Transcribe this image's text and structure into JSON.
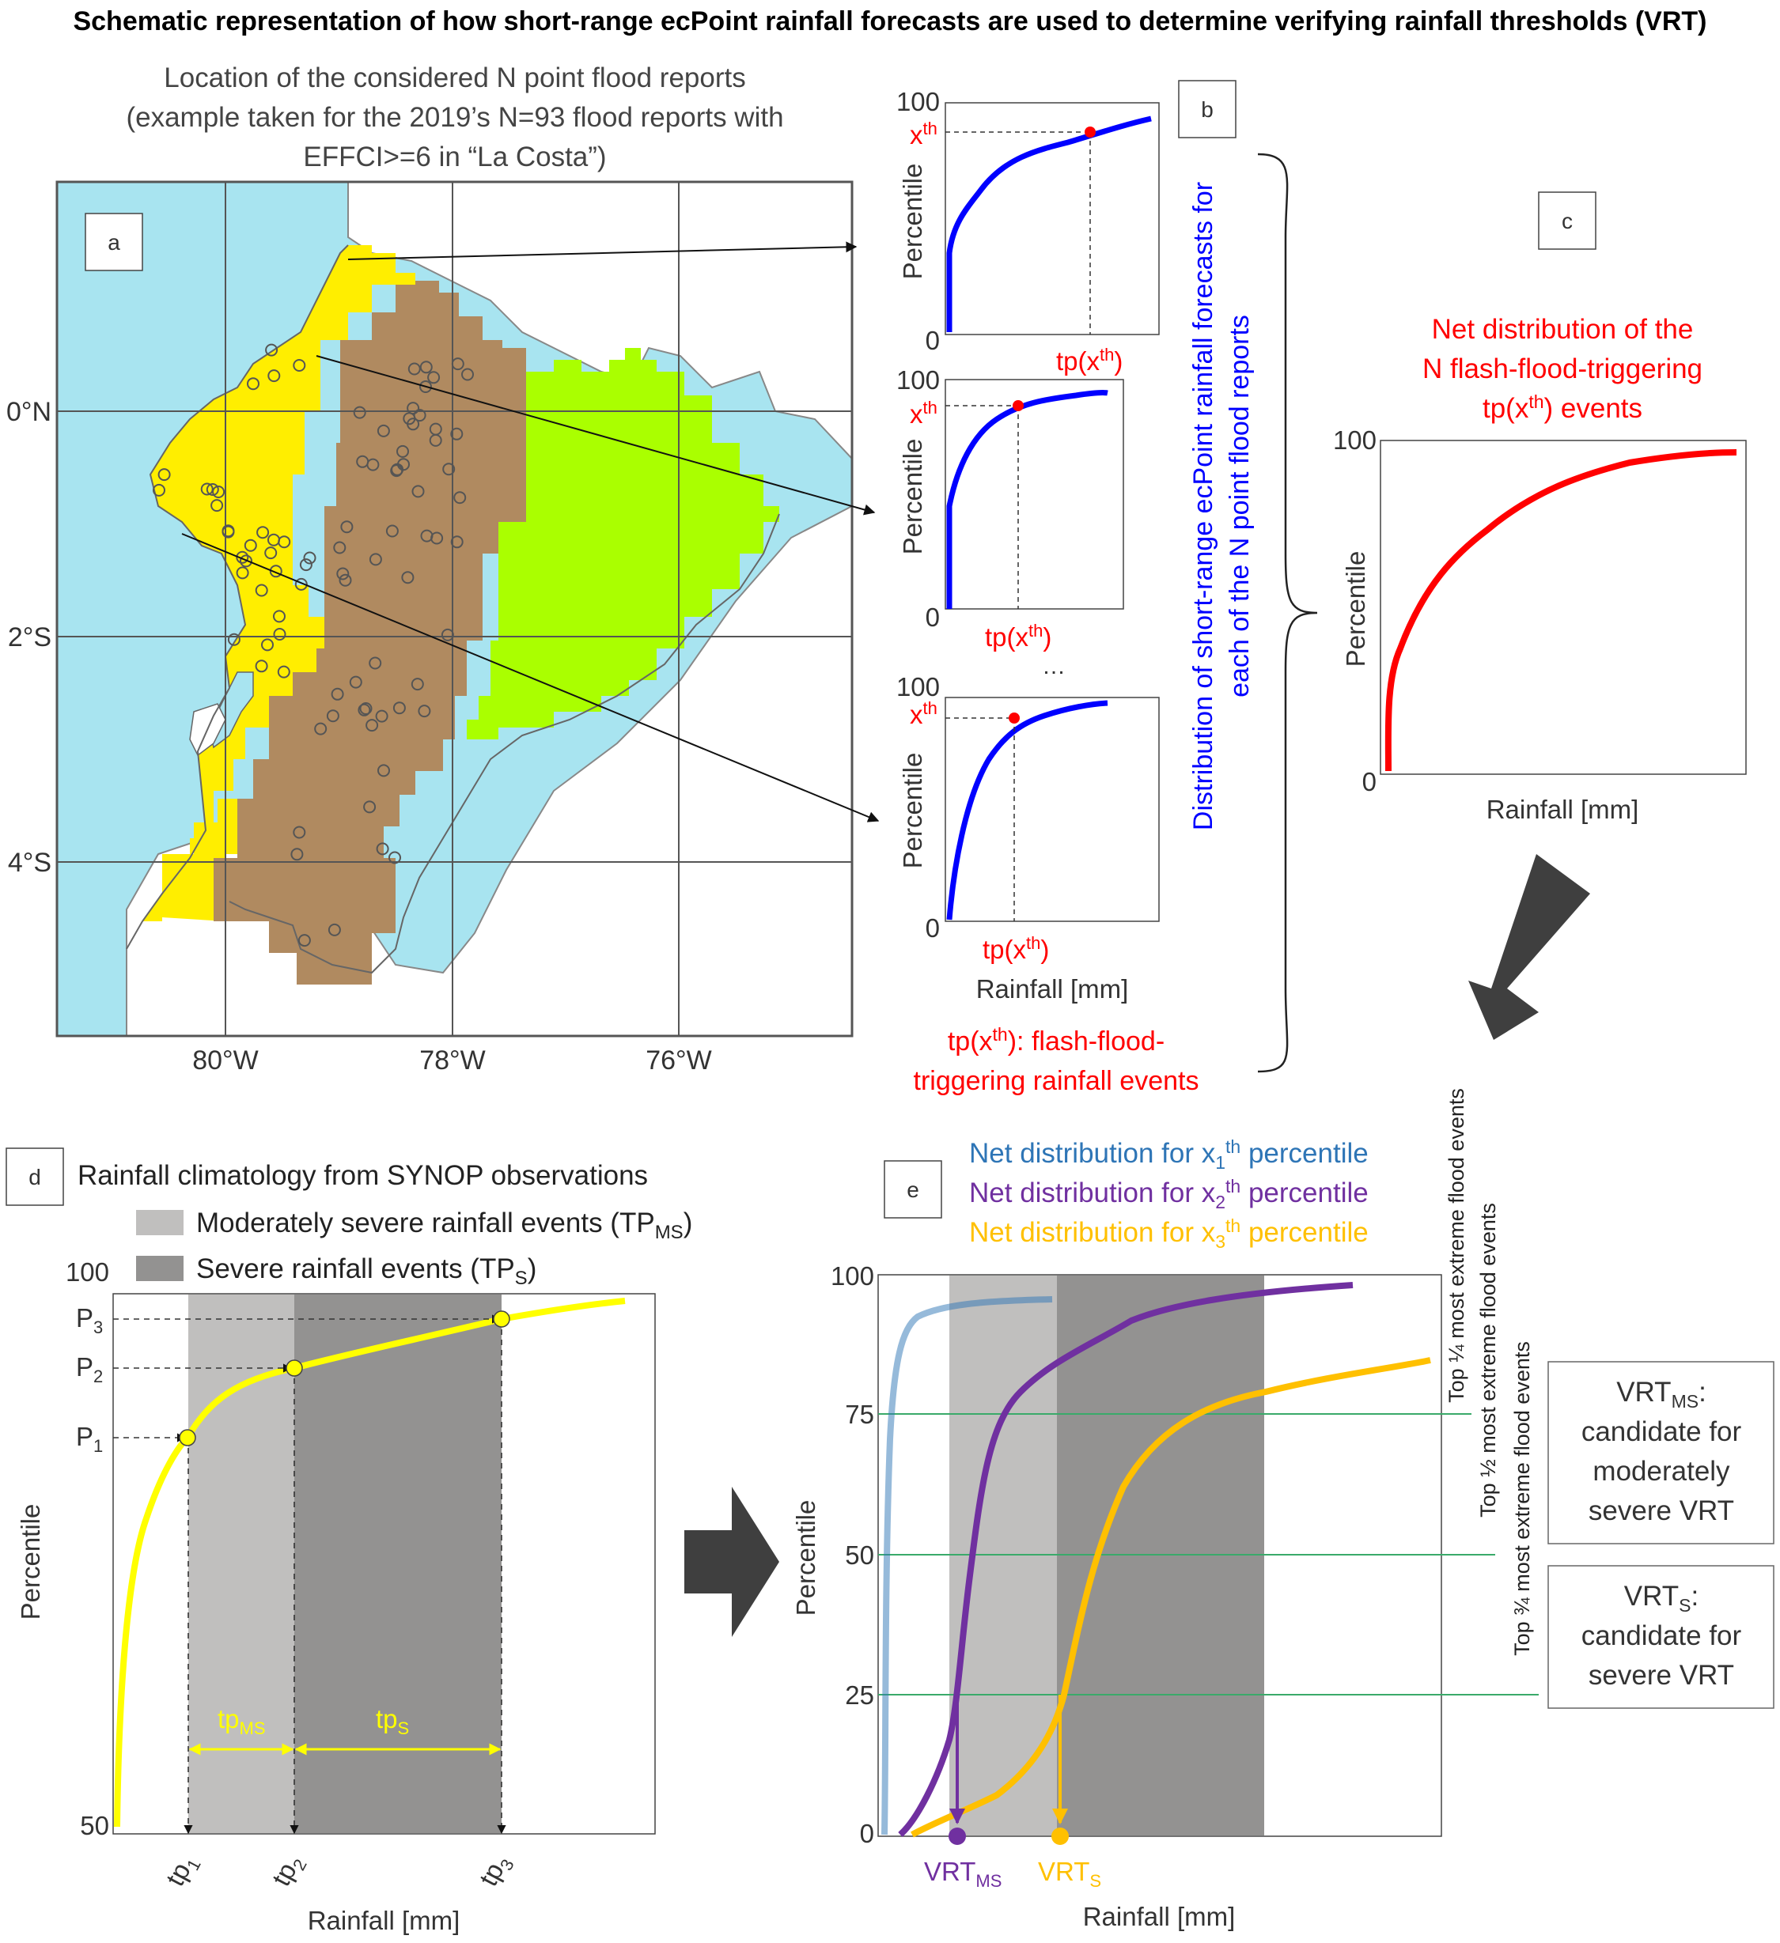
{
  "title": "Schematic representation of how short-range ecPoint rainfall forecasts are used to determine verifying rainfall thresholds (VRT)",
  "panel_a": {
    "label": "a",
    "caption_lines": [
      "Location of the considered N point flood reports",
      "(example taken for the 2019’s N=93 flood reports with",
      "EFFCI>=6 in “La Costa”)"
    ],
    "lat_labels": [
      "0°N",
      "2°S",
      "4°S"
    ],
    "lon_labels": [
      "80°W",
      "78°W",
      "76°W"
    ],
    "colors": {
      "ocean": "#a8e4f0",
      "costa": "#ffee00",
      "sierra": "#b08a60",
      "oriente": "#aaff00"
    }
  },
  "panel_b": {
    "label": "b",
    "ymax": "100",
    "ymin": "0",
    "ylabel": "Percentile",
    "point_label": "x",
    "point_sup": "th",
    "tp_label": "tp(x",
    "tp_sup": "th",
    "tp_close": ")",
    "dots": "…",
    "xlabel": "Rainfall [mm]",
    "side_text_1": "Distribution of short-range ecPoint rainfall forecasts for",
    "side_text_2": "each of the N point flood reports",
    "note_line1": "tp(x",
    "note_sup": "th",
    "note_line1_end": "): flash-flood-",
    "note_line2": "triggering rainfall events",
    "colors": {
      "curve": "#0000ff",
      "point": "#ff0000",
      "note": "#ff0000",
      "side": "#0000ff"
    }
  },
  "panel_c": {
    "label": "c",
    "title_lines": [
      "Net distribution of the",
      "N flash-flood-triggering"
    ],
    "title_line3_pre": "tp(x",
    "title_line3_sup": "th",
    "title_line3_post": ") events",
    "ymax": "100",
    "ymin": "0",
    "ylabel": "Percentile",
    "xlabel": "Rainfall [mm]",
    "color": "#ff0000"
  },
  "panel_d": {
    "label": "d",
    "title": "Rainfall climatology from SYNOP observations",
    "legend_ms": "Moderately severe rainfall events (TP",
    "legend_ms_sub": "MS",
    "legend_ms_end": ")",
    "legend_s": "Severe rainfall events (TP",
    "legend_s_sub": "S",
    "legend_s_end": ")",
    "ymax": "100",
    "ymin": "50",
    "ylabel": "Percentile",
    "xlabel": "Rainfall [mm]",
    "p_labels": [
      "P",
      "P",
      "P"
    ],
    "p_subs": [
      "1",
      "2",
      "3"
    ],
    "tp_labels": [
      "tp",
      "tp",
      "tp"
    ],
    "tp_subs": [
      "1",
      "2",
      "3"
    ],
    "range_ms": "tp",
    "range_ms_sub": "MS",
    "range_s": "tp",
    "range_s_sub": "S",
    "colors": {
      "curve": "#ffff00",
      "ms_band": "#c0bfbe",
      "s_band": "#939291"
    }
  },
  "panel_e": {
    "label": "e",
    "legend": [
      {
        "text": "Net distribution for x",
        "sub": "1",
        "sup": "th",
        "end": " percentile",
        "color": "#2e75b6"
      },
      {
        "text": "Net distribution for x",
        "sub": "2",
        "sup": "th",
        "end": " percentile",
        "color": "#7030a0"
      },
      {
        "text": "Net distribution for x",
        "sub": "3",
        "sup": "th",
        "end": " percentile",
        "color": "#ffc000"
      }
    ],
    "yticks": [
      "100",
      "75",
      "50",
      "25",
      "0"
    ],
    "ylabel": "Percentile",
    "xlabel": "Rainfall [mm]",
    "vrt_ms": "VRT",
    "vrt_ms_sub": "MS",
    "vrt_s": "VRT",
    "vrt_s_sub": "S",
    "side_labels": [
      "Top ¼ most extreme flood events",
      "Top ½ most extreme flood events",
      "Top ¾ most extreme flood events"
    ],
    "box_ms_lines": [
      "candidate for",
      "moderately",
      "severe VRT"
    ],
    "box_ms_head": "VRT",
    "box_ms_head_sub": "MS",
    "box_ms_head_end": ":",
    "box_s_lines": [
      "candidate",
      "for",
      "severe VRT"
    ],
    "box_s_head": "VRT",
    "box_s_head_sub": "S",
    "box_s_head_end": ":",
    "line_color": "#3aaa6a"
  }
}
